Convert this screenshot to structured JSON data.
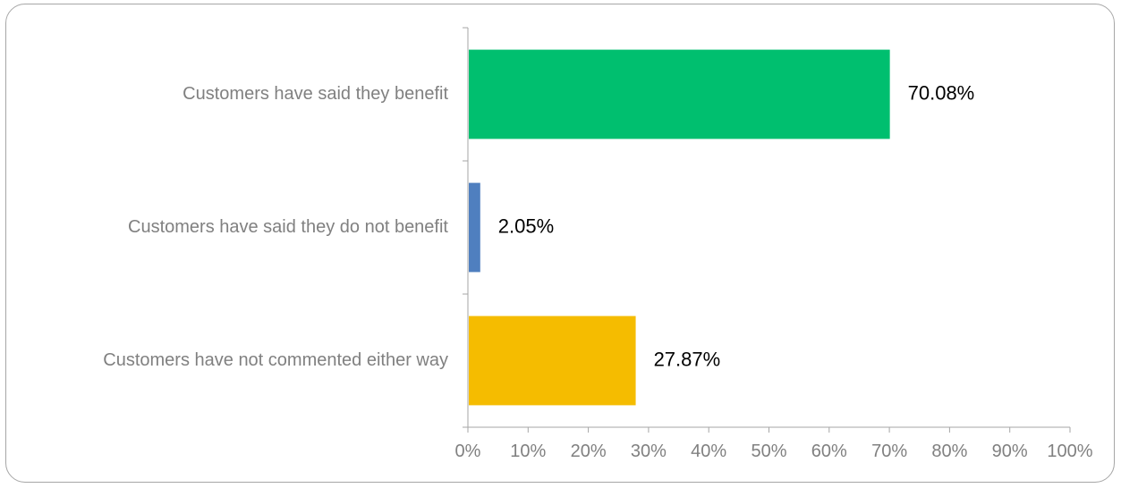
{
  "chart_data": {
    "type": "bar",
    "orientation": "horizontal",
    "categories": [
      "Customers have said they benefit",
      "Customers have said they do not benefit",
      "Customers have not commented either way"
    ],
    "values": [
      70.08,
      2.05,
      27.87
    ],
    "data_labels": [
      "70.08%",
      "2.05%",
      "27.87%"
    ],
    "colors": [
      "#00bf6f",
      "#4f7fbf",
      "#f5bc00"
    ],
    "xlim": [
      0,
      100
    ],
    "x_ticks": [
      "0%",
      "10%",
      "20%",
      "30%",
      "40%",
      "50%",
      "60%",
      "70%",
      "80%",
      "90%",
      "100%"
    ],
    "title": "",
    "xlabel": "",
    "ylabel": "",
    "grid": false,
    "legend": "none"
  }
}
